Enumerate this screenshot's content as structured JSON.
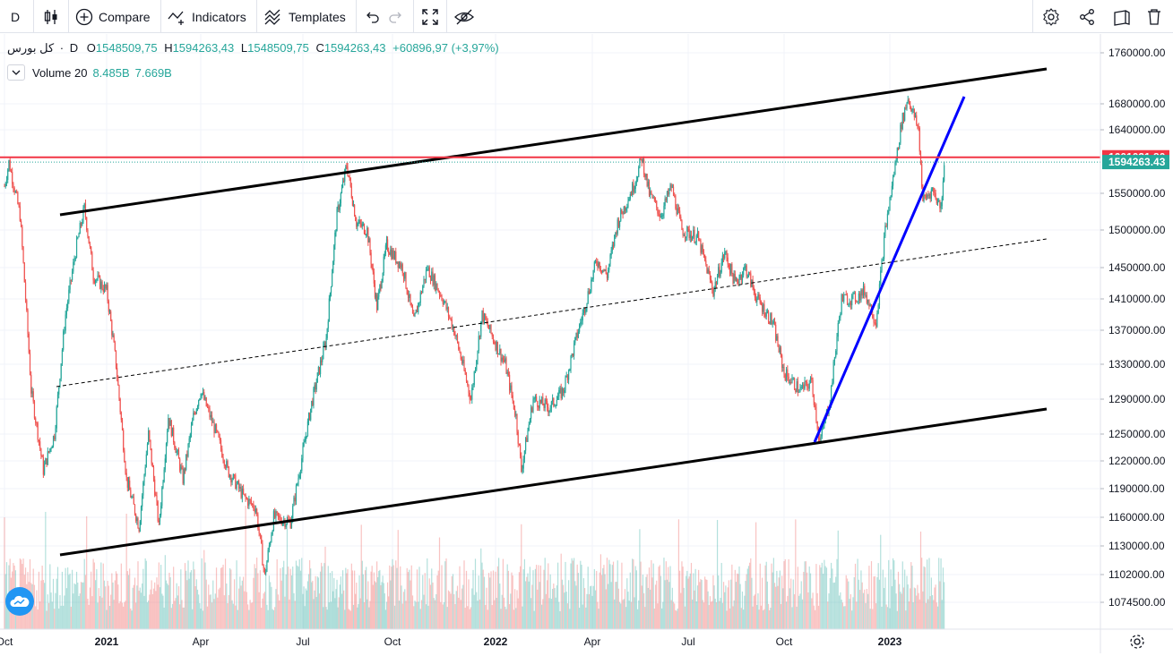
{
  "toolbar": {
    "interval": "D",
    "compare_label": "Compare",
    "indicators_label": "Indicators",
    "templates_label": "Templates"
  },
  "legend": {
    "symbol": "کل بورس",
    "interval": "D",
    "open_key": "O",
    "open": "1548509,75",
    "high_key": "H",
    "high": "1594263,43",
    "low_key": "L",
    "low": "1548509,75",
    "close_key": "C",
    "close": "1594263,43",
    "change": "+60896,97 (+3,97%)"
  },
  "volume_legend": {
    "label": "Volume 20",
    "value1": "8.485B",
    "value2": "7.669B"
  },
  "colors": {
    "up": "#26a69a",
    "down": "#ef5350",
    "horizontal_line": "#f23645",
    "trendline_blue": "#0000ff",
    "channel": "#000000",
    "price_badge": "#26a69a"
  },
  "chart_data": {
    "type": "candlestick",
    "y_axis_ticks": [
      "1760000.00",
      "1680000.00",
      "1640000.00",
      "1550000.00",
      "1500000.00",
      "1450000.00",
      "1410000.00",
      "1370000.00",
      "1330000.00",
      "1290000.00",
      "1250000.00",
      "1220000.00",
      "1190000.00",
      "1160000.00",
      "1130000.00",
      "1102000.00",
      "1074500.00"
    ],
    "x_axis_ticks": [
      "Oct",
      "2021",
      "Apr",
      "Jul",
      "Oct",
      "2022",
      "Apr",
      "Jul",
      "Oct",
      "2023"
    ],
    "horizontal_line_value": "1601031.80",
    "last_price": "1594263.43",
    "price_path": [
      [
        "2020-10-01",
        1560000
      ],
      [
        "2020-10-05",
        1594000
      ],
      [
        "2020-10-15",
        1520000
      ],
      [
        "2020-10-25",
        1300000
      ],
      [
        "2020-11-05",
        1210000
      ],
      [
        "2020-11-15",
        1250000
      ],
      [
        "2020-11-25",
        1390000
      ],
      [
        "2020-12-05",
        1480000
      ],
      [
        "2020-12-12",
        1530000
      ],
      [
        "2020-12-20",
        1440000
      ],
      [
        "2021-01-01",
        1420000
      ],
      [
        "2021-01-10",
        1330000
      ],
      [
        "2021-01-20",
        1200000
      ],
      [
        "2021-02-01",
        1150000
      ],
      [
        "2021-02-10",
        1250000
      ],
      [
        "2021-02-20",
        1150000
      ],
      [
        "2021-03-01",
        1270000
      ],
      [
        "2021-03-15",
        1200000
      ],
      [
        "2021-03-25",
        1270000
      ],
      [
        "2021-04-01",
        1300000
      ],
      [
        "2021-04-15",
        1250000
      ],
      [
        "2021-04-25",
        1210000
      ],
      [
        "2021-05-10",
        1180000
      ],
      [
        "2021-05-20",
        1170000
      ],
      [
        "2021-05-28",
        1100000
      ],
      [
        "2021-06-05",
        1160000
      ],
      [
        "2021-06-20",
        1155000
      ],
      [
        "2021-07-01",
        1230000
      ],
      [
        "2021-07-10",
        1285000
      ],
      [
        "2021-07-25",
        1360000
      ],
      [
        "2021-08-05",
        1520000
      ],
      [
        "2021-08-15",
        1590000
      ],
      [
        "2021-08-25",
        1510000
      ],
      [
        "2021-09-05",
        1500000
      ],
      [
        "2021-09-15",
        1400000
      ],
      [
        "2021-09-25",
        1480000
      ],
      [
        "2021-10-10",
        1450000
      ],
      [
        "2021-10-20",
        1380000
      ],
      [
        "2021-11-01",
        1450000
      ],
      [
        "2021-11-15",
        1410000
      ],
      [
        "2021-11-25",
        1370000
      ],
      [
        "2021-12-10",
        1290000
      ],
      [
        "2021-12-20",
        1390000
      ],
      [
        "2021-12-30",
        1360000
      ],
      [
        "2022-01-10",
        1330000
      ],
      [
        "2022-01-20",
        1270000
      ],
      [
        "2022-01-25",
        1210000
      ],
      [
        "2022-02-05",
        1290000
      ],
      [
        "2022-02-20",
        1280000
      ],
      [
        "2022-03-05",
        1300000
      ],
      [
        "2022-03-15",
        1350000
      ],
      [
        "2022-03-25",
        1400000
      ],
      [
        "2022-04-05",
        1460000
      ],
      [
        "2022-04-15",
        1440000
      ],
      [
        "2022-04-25",
        1510000
      ],
      [
        "2022-05-10",
        1560000
      ],
      [
        "2022-05-18",
        1600000
      ],
      [
        "2022-05-25",
        1550000
      ],
      [
        "2022-06-05",
        1520000
      ],
      [
        "2022-06-15",
        1560000
      ],
      [
        "2022-06-25",
        1500000
      ],
      [
        "2022-07-10",
        1490000
      ],
      [
        "2022-07-25",
        1420000
      ],
      [
        "2022-08-05",
        1470000
      ],
      [
        "2022-08-15",
        1430000
      ],
      [
        "2022-08-25",
        1450000
      ],
      [
        "2022-09-05",
        1410000
      ],
      [
        "2022-09-20",
        1380000
      ],
      [
        "2022-10-01",
        1320000
      ],
      [
        "2022-10-15",
        1300000
      ],
      [
        "2022-10-25",
        1310000
      ],
      [
        "2022-11-01",
        1240000
      ],
      [
        "2022-11-10",
        1290000
      ],
      [
        "2022-11-20",
        1410000
      ],
      [
        "2022-12-01",
        1410000
      ],
      [
        "2022-12-10",
        1420000
      ],
      [
        "2022-12-20",
        1380000
      ],
      [
        "2022-12-28",
        1500000
      ],
      [
        "2023-01-05",
        1580000
      ],
      [
        "2023-01-12",
        1650000
      ],
      [
        "2023-01-18",
        1690000
      ],
      [
        "2023-01-28",
        1640000
      ],
      [
        "2023-02-01",
        1540000
      ],
      [
        "2023-02-10",
        1555000
      ],
      [
        "2023-02-18",
        1530000
      ],
      [
        "2023-02-21",
        1594263
      ]
    ]
  }
}
